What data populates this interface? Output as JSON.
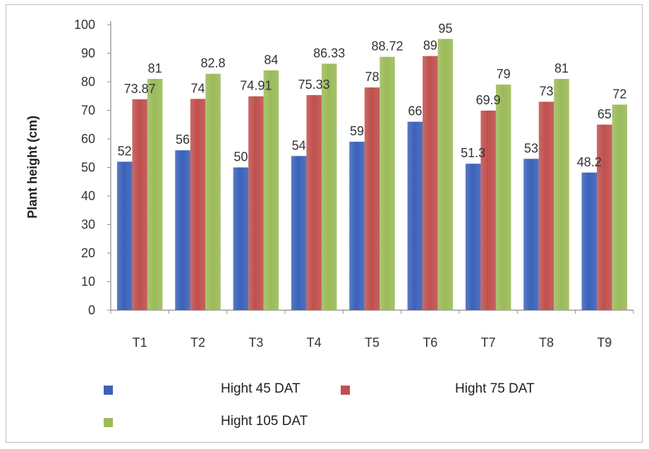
{
  "chart_data": {
    "type": "bar",
    "title": "",
    "xlabel": "",
    "ylabel": "Plant height (cm)",
    "ylim": [
      0,
      100
    ],
    "yticks": [
      0,
      10,
      20,
      30,
      40,
      50,
      60,
      70,
      80,
      90,
      100
    ],
    "grid": false,
    "legend_position": "bottom",
    "categories": [
      "T1",
      "T2",
      "T3",
      "T4",
      "T5",
      "T6",
      "T7",
      "T8",
      "T9"
    ],
    "series": [
      {
        "name": "Hight 45 DAT",
        "color": "#3B62B9",
        "values": [
          52,
          56,
          50,
          54,
          59,
          66,
          51.3,
          53,
          48.2
        ],
        "labels": [
          "52",
          "56",
          "50",
          "54",
          "59",
          "66",
          "51.3",
          "53",
          "48.2"
        ]
      },
      {
        "name": "Hight 75 DAT",
        "color": "#C0504D",
        "values": [
          73.87,
          74,
          74.91,
          75.33,
          78,
          89,
          69.9,
          73,
          65
        ],
        "labels": [
          "73.87",
          "74",
          "74.91",
          "75.33",
          "78",
          "89",
          "69.9",
          "73",
          "65"
        ]
      },
      {
        "name": "Hight 105 DAT",
        "color": "#9BBB59",
        "values": [
          81,
          82.8,
          84,
          86.33,
          88.72,
          95,
          79,
          81,
          72
        ],
        "labels": [
          "81",
          "82.8",
          "84",
          "86.33",
          "88.72",
          "95",
          "79",
          "81",
          "72"
        ]
      }
    ]
  }
}
